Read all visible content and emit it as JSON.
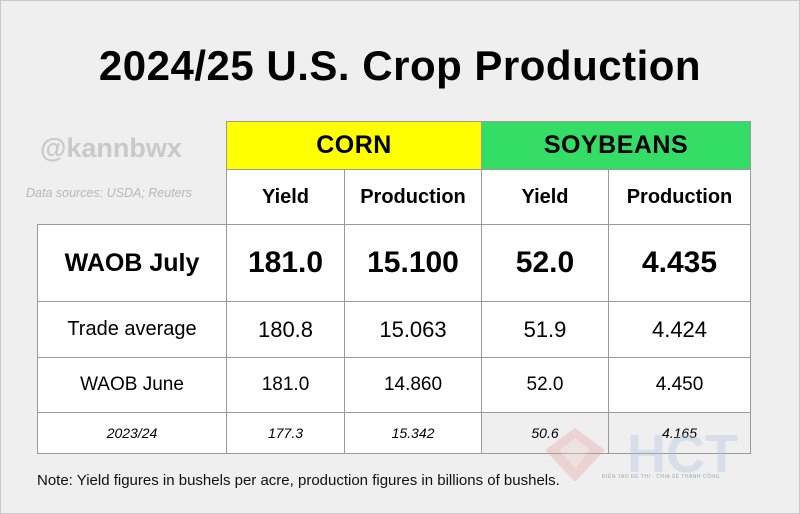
{
  "title": "2024/25 U.S. Crop Production",
  "handle": "@kannbwx",
  "sources": "Data sources: USDA; Reuters",
  "note": "Note: Yield figures in bushels per acre, production figures in billions of bushels.",
  "watermark": {
    "text": "HCT",
    "tagline": "ĐIỂN TAO ĐỂ THI - CHIA SẺ THÀNH CÔNG"
  },
  "table": {
    "group_headers": {
      "corn": "CORN",
      "soybeans": "SOYBEANS"
    },
    "sub_headers": [
      "Yield",
      "Production",
      "Yield",
      "Production"
    ],
    "rows": [
      {
        "label": "WAOB July",
        "values": [
          "181.0",
          "15.100",
          "52.0",
          "4.435"
        ]
      },
      {
        "label": "Trade average",
        "values": [
          "180.8",
          "15.063",
          "51.9",
          "4.424"
        ]
      },
      {
        "label": "WAOB June",
        "values": [
          "181.0",
          "14.860",
          "52.0",
          "4.450"
        ]
      },
      {
        "label": "2023/24",
        "values": [
          "177.3",
          "15.342",
          "50.6",
          "4.165"
        ]
      }
    ]
  },
  "colors": {
    "corn_header": "#ffff00",
    "soybeans_header": "#33dd66"
  }
}
